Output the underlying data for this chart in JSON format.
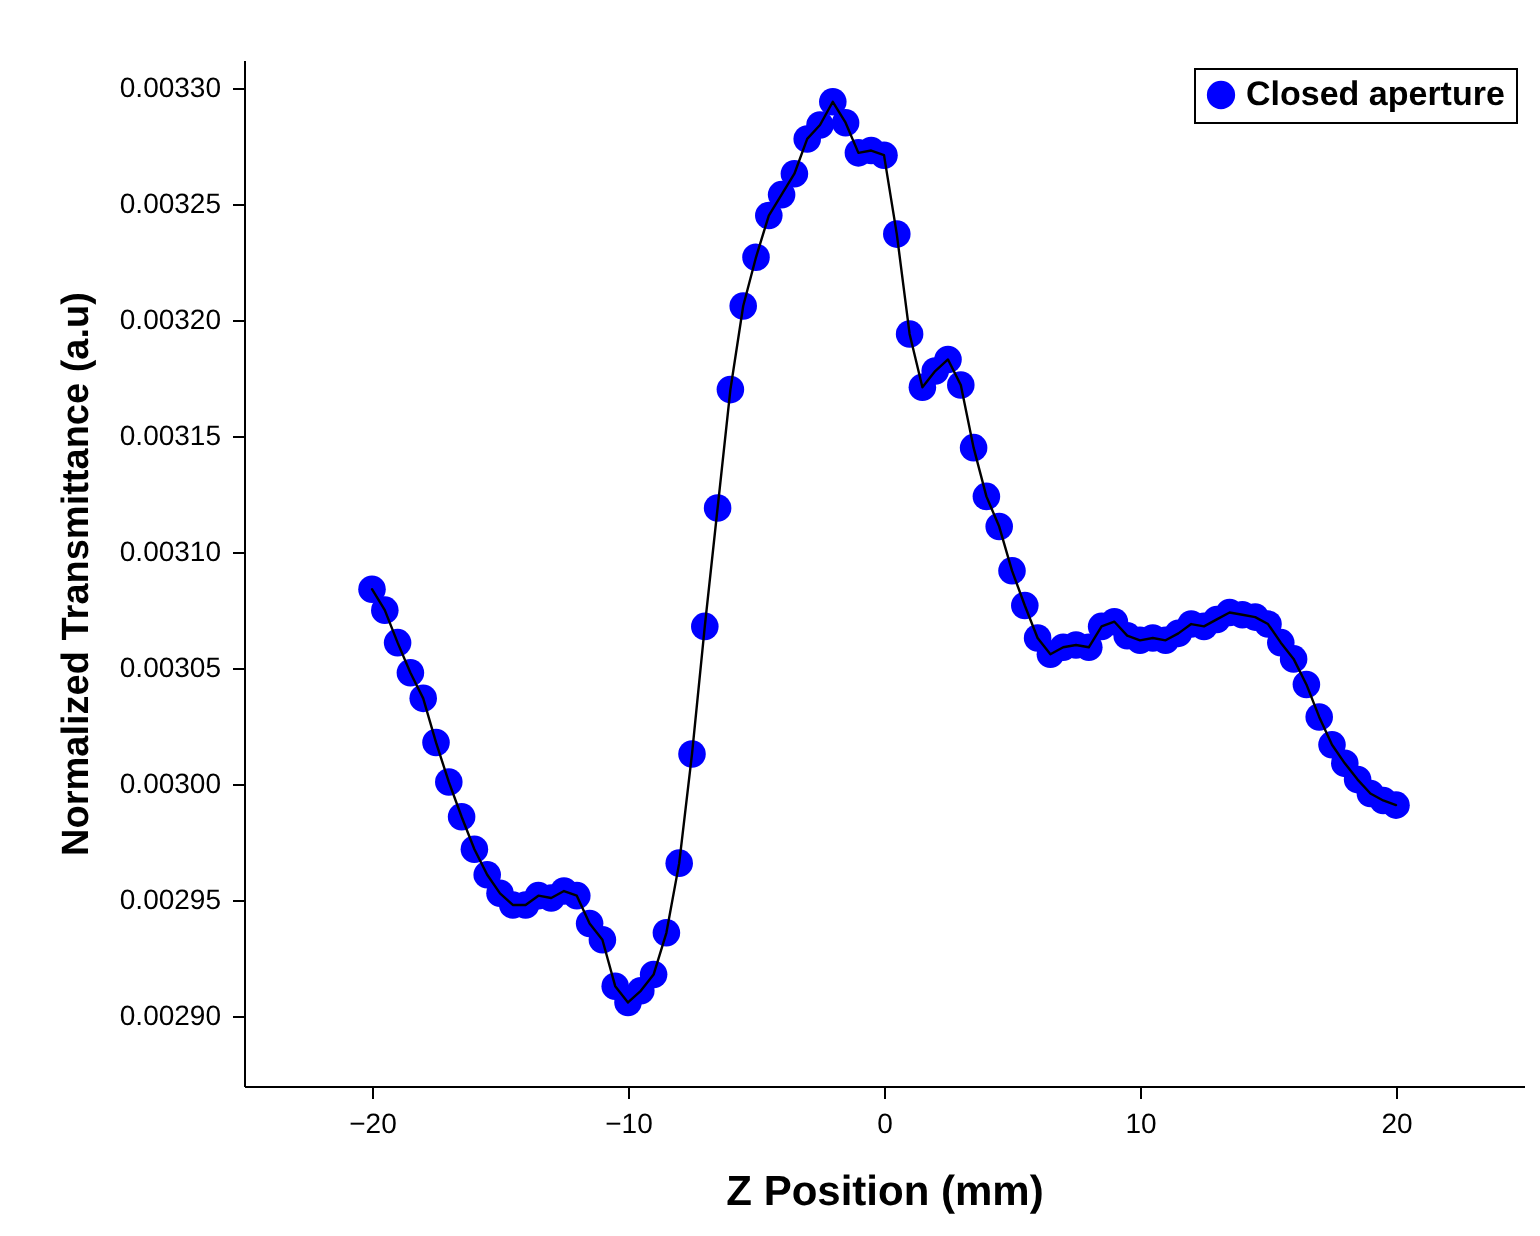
{
  "chart_data": {
    "type": "line",
    "xlabel": "Z Position (mm)",
    "ylabel": "Normalized Transmittance (a.u)",
    "x": [
      -20,
      -19.5,
      -19,
      -18.5,
      -18,
      -17.5,
      -17,
      -16.5,
      -16,
      -15.5,
      -15,
      -14.5,
      -14,
      -13.5,
      -13,
      -12.5,
      -12,
      -11.5,
      -11,
      -10.5,
      -10,
      -9.5,
      -9,
      -8.5,
      -8,
      -7.5,
      -7,
      -6.5,
      -6,
      -5.5,
      -5,
      -4.5,
      -4,
      -3.5,
      -3,
      -2.5,
      -2,
      -1.5,
      -1,
      -0.5,
      0,
      0.5,
      1,
      1.5,
      2,
      2.5,
      3,
      3.5,
      4,
      4.5,
      5,
      5.5,
      6,
      6.5,
      7,
      7.5,
      8,
      8.5,
      9,
      9.5,
      10,
      10.5,
      11,
      11.5,
      12,
      12.5,
      13,
      13.5,
      14,
      14.5,
      15,
      15.5,
      16,
      16.5,
      17,
      17.5,
      18,
      18.5,
      19,
      19.5,
      20
    ],
    "series": [
      {
        "name": "Closed aperture",
        "color": "#0000ff",
        "values": [
          0.003084,
          0.003075,
          0.003061,
          0.003048,
          0.003037,
          0.003018,
          0.003001,
          0.002986,
          0.002972,
          0.002961,
          0.002953,
          0.002948,
          0.002948,
          0.002952,
          0.002951,
          0.002954,
          0.002952,
          0.00294,
          0.002933,
          0.002913,
          0.002906,
          0.002911,
          0.002918,
          0.002936,
          0.002966,
          0.003013,
          0.003068,
          0.003119,
          0.00317,
          0.003206,
          0.003227,
          0.003245,
          0.003254,
          0.003263,
          0.003278,
          0.003284,
          0.003294,
          0.003285,
          0.003272,
          0.003273,
          0.003271,
          0.003237,
          0.003194,
          0.003171,
          0.003178,
          0.003183,
          0.003172,
          0.003145,
          0.003124,
          0.003111,
          0.003092,
          0.003077,
          0.003063,
          0.003056,
          0.003059,
          0.00306,
          0.003059,
          0.003068,
          0.00307,
          0.003064,
          0.003062,
          0.003063,
          0.003062,
          0.003065,
          0.003069,
          0.003068,
          0.003071,
          0.003074,
          0.003073,
          0.003072,
          0.003069,
          0.003061,
          0.003054,
          0.003043,
          0.003029,
          0.003017,
          0.003009,
          0.003002,
          0.002996,
          0.002993,
          0.002991
        ]
      }
    ],
    "xlim": [
      -25,
      25
    ],
    "xticks": [
      -20,
      -10,
      0,
      10,
      20
    ],
    "ylim": [
      0.00287,
      0.003312
    ],
    "yticks": [
      {
        "value": 0.0029,
        "label": "0.00290"
      },
      {
        "value": 0.00295,
        "label": "0.00295"
      },
      {
        "value": 0.003,
        "label": "0.00300"
      },
      {
        "value": 0.00305,
        "label": "0.00305"
      },
      {
        "value": 0.0031,
        "label": "0.00310"
      },
      {
        "value": 0.00315,
        "label": "0.00315"
      },
      {
        "value": 0.0032,
        "label": "0.00320"
      },
      {
        "value": 0.00325,
        "label": "0.00325"
      },
      {
        "value": 0.0033,
        "label": "0.00330"
      }
    ],
    "legend": "top right",
    "marker": "circle",
    "line_style": "solid",
    "grid": false
  }
}
